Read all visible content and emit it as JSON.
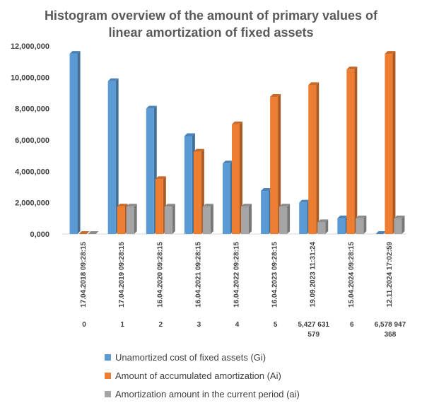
{
  "chart_data": {
    "type": "bar",
    "title_line1": "Histogram overview of the amount of primary values of",
    "title_line2": "linear amortization of fixed assets",
    "xlabel": "",
    "ylabel": "",
    "ylim": [
      0,
      12000000
    ],
    "y_ticks": [
      0,
      2000000,
      4000000,
      6000000,
      8000000,
      10000000,
      12000000
    ],
    "y_tick_labels": [
      "0,000",
      "2,000,000",
      "4,000,000",
      "6,000,000",
      "8,000,000",
      "10,000,000",
      "12,000,000"
    ],
    "categories": [
      {
        "date": "17.04.2018 09:28:15",
        "index": "0"
      },
      {
        "date": "17.04.2019 09:28:15",
        "index": "1"
      },
      {
        "date": "16.04.2020 09:28:15",
        "index": "2"
      },
      {
        "date": "16.04.2021 09:28:15",
        "index": "3"
      },
      {
        "date": "16.04.2022 09:28:15",
        "index": "4"
      },
      {
        "date": "16.04.2023 09:28:15",
        "index": "5"
      },
      {
        "date": "19.09.2023 11:31:24",
        "index": "5,427 631 579"
      },
      {
        "date": "15.04.2024 09:28:15",
        "index": "6"
      },
      {
        "date": "12.11.2024 17:02:59",
        "index": "6,578 947 368"
      }
    ],
    "series": [
      {
        "name": "Unamortized cost of fixed assets (Gi)",
        "color": "#5B9BD5",
        "values": [
          11500000,
          9750000,
          8000000,
          6250000,
          4500000,
          2750000,
          2000000,
          1000000,
          0
        ]
      },
      {
        "name": "Amount of accumulated amortization (Ai)",
        "color": "#ED7D31",
        "values": [
          0,
          1750000,
          3500000,
          5250000,
          7000000,
          8750000,
          9500000,
          10500000,
          11500000
        ]
      },
      {
        "name": "Amortization amount in the current period (ai)",
        "color": "#A5A5A5",
        "values": [
          0,
          1750000,
          1750000,
          1750000,
          1750000,
          1750000,
          750000,
          1000000,
          1000000
        ]
      }
    ],
    "grid": false,
    "legend_position": "bottom"
  }
}
